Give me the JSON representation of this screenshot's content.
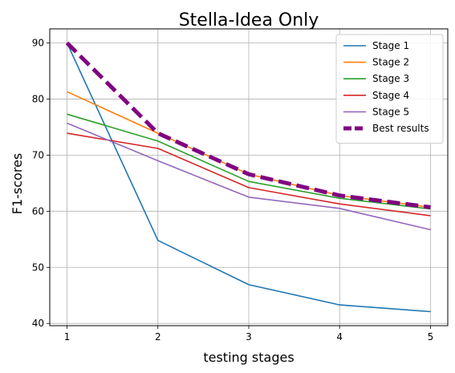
{
  "chart_data": {
    "type": "line",
    "title": "Stella-Idea Only",
    "xlabel": "testing stages",
    "ylabel": "F1-scores",
    "x": [
      1,
      2,
      3,
      4,
      5
    ],
    "xticks": [
      "1",
      "2",
      "3",
      "4",
      "5"
    ],
    "yticks": [
      "40",
      "50",
      "60",
      "70",
      "80",
      "90"
    ],
    "xlim": [
      0.81,
      5.19
    ],
    "ylim": [
      39.6,
      92.5
    ],
    "grid": true,
    "legend_position": "top-right",
    "series": [
      {
        "name": "Stage 1",
        "color": "#1f77b4",
        "style": "solid",
        "values": [
          90.0,
          54.8,
          46.9,
          43.3,
          42.1
        ]
      },
      {
        "name": "Stage 2",
        "color": "#ff7f0e",
        "style": "solid",
        "values": [
          81.3,
          73.9,
          66.6,
          62.8,
          60.7
        ]
      },
      {
        "name": "Stage 3",
        "color": "#2ca02c",
        "style": "solid",
        "values": [
          77.3,
          72.5,
          65.3,
          62.3,
          60.4
        ]
      },
      {
        "name": "Stage 4",
        "color": "#d62728",
        "style": "solid",
        "values": [
          73.9,
          71.2,
          64.2,
          61.3,
          59.2
        ]
      },
      {
        "name": "Stage 5",
        "color": "#9467bd",
        "style": "solid",
        "values": [
          75.7,
          69.0,
          62.5,
          60.5,
          56.7
        ]
      },
      {
        "name": "Best results",
        "color": "#800080",
        "style": "dashed",
        "values": [
          90.0,
          73.9,
          66.6,
          62.8,
          60.7
        ]
      }
    ]
  }
}
